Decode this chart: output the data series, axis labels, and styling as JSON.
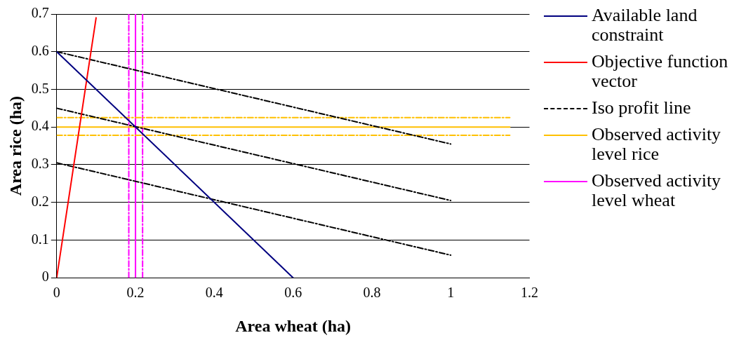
{
  "chart_data": {
    "type": "line",
    "xlabel": "Area wheat (ha)",
    "ylabel": "Area rice (ha)",
    "xlim": [
      0,
      1.2
    ],
    "xticks": [
      0,
      0.2,
      0.4,
      0.6,
      0.8,
      1,
      1.2
    ],
    "ylim": [
      0,
      0.7
    ],
    "yticks": [
      0,
      0.1,
      0.2,
      0.3,
      0.4,
      0.5,
      0.6,
      0.7
    ],
    "grid": "y",
    "legend": "right",
    "marker": "none",
    "series": [
      {
        "name": "Available land constraint",
        "color": "#000080",
        "x": [
          0,
          0.6
        ],
        "values": [
          0.6,
          0
        ],
        "line_style": "solid"
      },
      {
        "name": "Objective function vector",
        "color": "#ff0000",
        "x": [
          0,
          0.1
        ],
        "values": [
          0,
          0.69
        ],
        "line_style": "solid"
      },
      {
        "name": "Iso profit line",
        "color": "#000000",
        "x": [
          0,
          1
        ],
        "values": [
          0.6,
          0.355
        ],
        "line_style": "dashed"
      },
      {
        "color": "#000000",
        "x": [
          0,
          1
        ],
        "values": [
          0.45,
          0.205
        ],
        "line_style": "dashed"
      },
      {
        "color": "#000000",
        "x": [
          0,
          1
        ],
        "values": [
          0.305,
          0.06
        ],
        "line_style": "dashed"
      },
      {
        "name": "Observed activity level rice",
        "color": "#ffc000",
        "x": [
          0,
          1.15
        ],
        "values": [
          0.4,
          0.4
        ],
        "line_style": "solid"
      },
      {
        "color": "#ffc000",
        "x": [
          0,
          1.15
        ],
        "values": [
          0.425,
          0.425
        ],
        "line_style": "dashed"
      },
      {
        "color": "#ffc000",
        "x": [
          0,
          1.15
        ],
        "values": [
          0.378,
          0.378
        ],
        "line_style": "dashed"
      },
      {
        "name": "Observed activity level wheat",
        "color": "#ff00ff",
        "x": [
          0.2,
          0.2
        ],
        "values": [
          0,
          0.7
        ],
        "line_style": "solid"
      },
      {
        "color": "#ff00ff",
        "x": [
          0.183,
          0.183
        ],
        "values": [
          0,
          0.7
        ],
        "line_style": "dashed"
      },
      {
        "color": "#ff00ff",
        "x": [
          0.218,
          0.218
        ],
        "values": [
          0,
          0.7
        ],
        "line_style": "dashed"
      }
    ]
  }
}
